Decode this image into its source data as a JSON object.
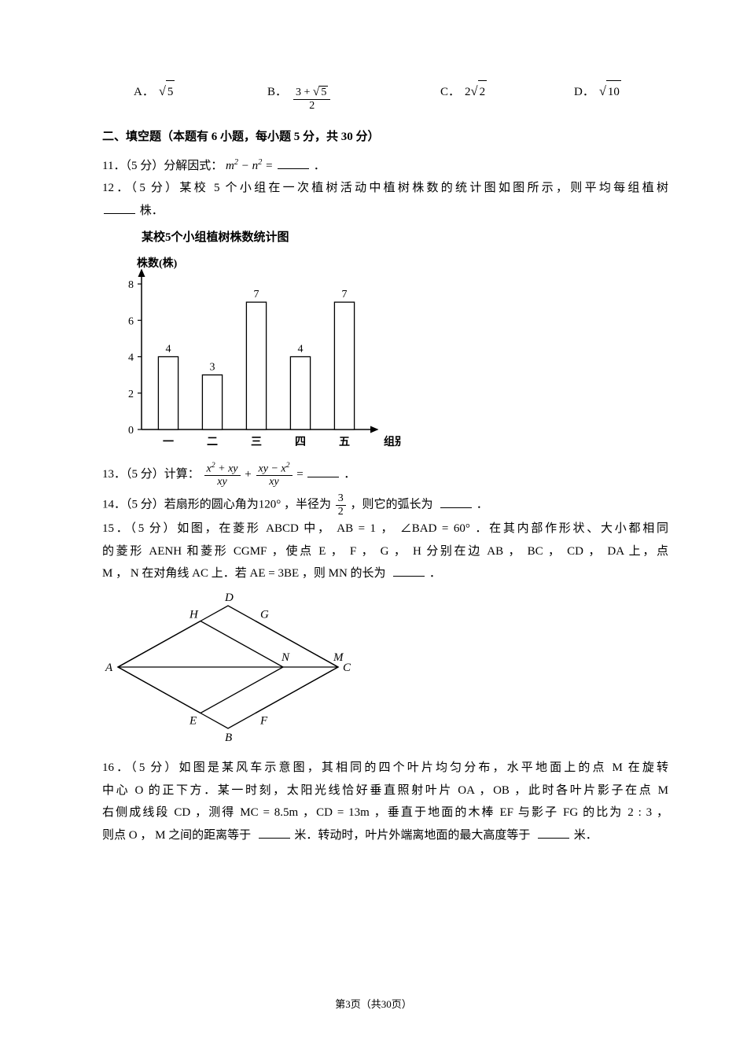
{
  "mc_options": {
    "a_label": "A．",
    "a_sqrt_arg": "5",
    "b_label": "B．",
    "b_num": "3 + √5",
    "b_den": "2",
    "c_label": "C．",
    "c_coef": "2",
    "c_sqrt_arg": "2",
    "d_label": "D．",
    "d_sqrt_arg": "10"
  },
  "section_header": "二、填空题（本题有 6 小题，每小题 5 分，共 30 分）",
  "q11": {
    "prefix": "11．（5 分）分解因式：",
    "expr_html": "m² − n² =",
    "suffix": "．"
  },
  "q12": {
    "line1": "12．（5 分）某校 5 个小组在一次植树活动中植树株数的统计图如图所示，则平均每组植树",
    "line2": "株．",
    "chart_title": "某校5个小组植树株数统计图",
    "chart": {
      "type": "bar",
      "ylabel": "株数(株)",
      "xlabel": "组别",
      "categories": [
        "一",
        "二",
        "三",
        "四",
        "五"
      ],
      "values": [
        4,
        3,
        7,
        4,
        7
      ],
      "yticks": [
        0,
        2,
        4,
        6,
        8
      ],
      "ylim_max": 8,
      "axis_color": "#000000",
      "bar_fill": "#ffffff",
      "bar_stroke": "#000000",
      "bar_stroke_width": 1.3,
      "bar_width_ratio": 0.45,
      "label_fontsize": 14,
      "value_fontsize": 14
    }
  },
  "q13": {
    "prefix": "13．（5 分）计算：",
    "frac1_num": "x² + xy",
    "frac1_den": "xy",
    "plus": "+",
    "frac2_num": "xy − x²",
    "frac2_den": "xy",
    "eq": " = ",
    "suffix": "．"
  },
  "q14": {
    "prefix": "14．（5 分）若扇形的圆心角为120° ，半径为",
    "frac_num": "3",
    "frac_den": "2",
    "mid": "，则它的弧长为",
    "suffix": "．"
  },
  "q15": {
    "line1": "15．（5 分）如图，在菱形 ABCD 中， AB = 1 ， ∠BAD = 60° ．在其内部作形状、大小都相同",
    "line2": "的菱形 AENH 和菱形 CGMF ，使点 E ， F ， G ， H 分别在边 AB ， BC ， CD ， DA 上，点",
    "line3_pre": "M ， N 在对角线 AC 上．若 AE = 3BE ，则 MN 的长为",
    "line3_suf": "．",
    "diagram": {
      "labels": {
        "A": "A",
        "B": "B",
        "C": "C",
        "D": "D",
        "E": "E",
        "F": "F",
        "G": "G",
        "H": "H",
        "M": "M",
        "N": "N"
      },
      "stroke": "#000000",
      "stroke_width": 1.3
    }
  },
  "q16": {
    "line1": "16．（5 分）如图是某风车示意图，其相同的四个叶片均匀分布，水平地面上的点 M 在旋转",
    "line2": "中心 O 的正下方．某一时刻，太阳光线恰好垂直照射叶片 OA ，OB ，此时各叶片影子在点 M",
    "line3": "右侧成线段 CD ，测得 MC = 8.5m ，CD = 13m ，垂直于地面的木棒 EF 与影子 FG 的比为 2 : 3 ，",
    "line4_pre": "则点 O ， M 之间的距离等于",
    "line4_mid": "米．转动时，叶片外端离地面的最大高度等于",
    "line4_suf": "米．"
  },
  "footer": "第3页（共30页）"
}
